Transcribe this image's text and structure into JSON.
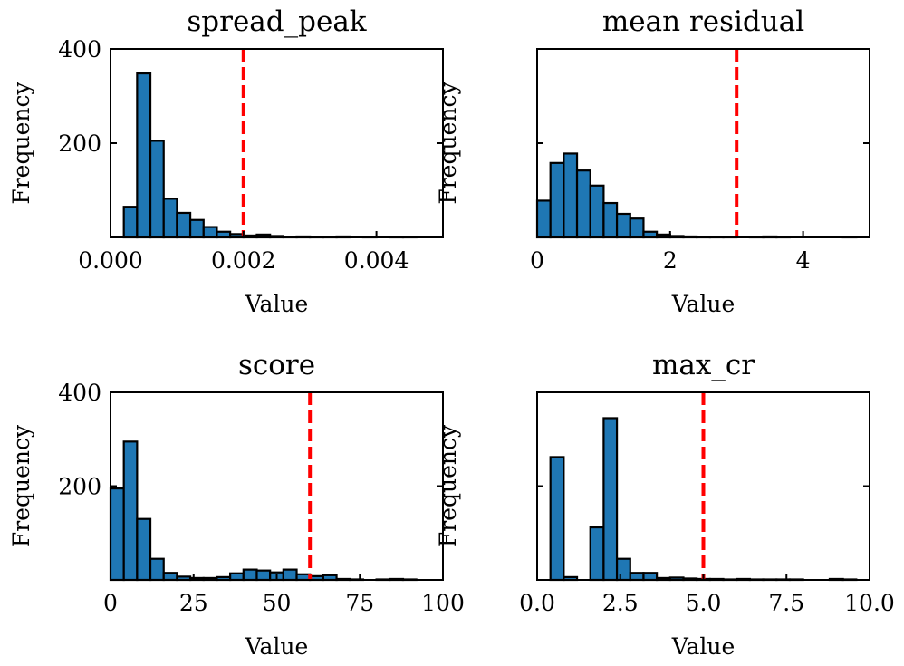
{
  "chart_data": [
    {
      "type": "bar",
      "title": "spread_peak",
      "xlabel": "Value",
      "ylabel": "Frequency",
      "xlim": [
        0,
        0.005
      ],
      "ylim": [
        0,
        400
      ],
      "xticks": [
        0.0,
        0.002,
        0.004
      ],
      "xtick_labels": [
        "0.000",
        "0.002",
        "0.004"
      ],
      "yticks": [
        200,
        400
      ],
      "ytick_labels": [
        "200",
        "400"
      ],
      "bin_edges": [
        0.0002,
        0.0004,
        0.0006,
        0.0008,
        0.001,
        0.0012,
        0.0014,
        0.0016,
        0.0018,
        0.002,
        0.0022,
        0.0024,
        0.0026,
        0.0028,
        0.003,
        0.0032,
        0.0034,
        0.0036,
        0.0038,
        0.004,
        0.0042,
        0.0044,
        0.0046,
        0.0048
      ],
      "values": [
        65,
        348,
        205,
        82,
        52,
        37,
        22,
        12,
        7,
        4,
        6,
        3,
        1,
        2,
        1,
        1,
        2,
        0,
        1,
        0,
        1,
        1,
        0
      ],
      "threshold": 0.002
    },
    {
      "type": "bar",
      "title": "mean residual",
      "xlabel": "Value",
      "ylabel": "Frequency",
      "xlim": [
        0,
        5
      ],
      "ylim": [
        0,
        400
      ],
      "xticks": [
        0,
        2,
        4
      ],
      "xtick_labels": [
        "0",
        "2",
        "4"
      ],
      "yticks": [
        200,
        400
      ],
      "ytick_labels": [
        "",
        ""
      ],
      "bin_edges": [
        0.0,
        0.2,
        0.4,
        0.6,
        0.8,
        1.0,
        1.2,
        1.4,
        1.6,
        1.8,
        2.0,
        2.2,
        2.4,
        2.6,
        2.8,
        3.0,
        3.2,
        3.4,
        3.6,
        3.8,
        4.0,
        4.2,
        4.4,
        4.6,
        4.8
      ],
      "values": [
        78,
        158,
        178,
        142,
        110,
        73,
        50,
        40,
        12,
        6,
        3,
        2,
        1,
        1,
        1,
        0,
        1,
        2,
        1,
        0,
        0,
        0,
        0,
        1
      ],
      "threshold": 3
    },
    {
      "type": "bar",
      "title": "score",
      "xlabel": "Value",
      "ylabel": "Frequency",
      "xlim": [
        0,
        100
      ],
      "ylim": [
        0,
        400
      ],
      "xticks": [
        0,
        25,
        50,
        75,
        100
      ],
      "xtick_labels": [
        "0",
        "25",
        "50",
        "75",
        "100"
      ],
      "yticks": [
        200,
        400
      ],
      "ytick_labels": [
        "200",
        "400"
      ],
      "bin_edges": [
        0,
        4,
        8,
        12,
        16,
        20,
        24,
        28,
        32,
        36,
        40,
        44,
        48,
        52,
        56,
        60,
        64,
        68,
        72,
        76,
        80,
        84,
        88,
        92
      ],
      "values": [
        195,
        295,
        130,
        45,
        15,
        7,
        4,
        4,
        6,
        14,
        22,
        20,
        16,
        22,
        12,
        8,
        10,
        2,
        1,
        0,
        1,
        2,
        1
      ],
      "threshold": 60
    },
    {
      "type": "bar",
      "title": "max_cr",
      "xlabel": "Value",
      "ylabel": "Frequency",
      "xlim": [
        0,
        10
      ],
      "ylim": [
        0,
        400
      ],
      "xticks": [
        0,
        2.5,
        5,
        7.5,
        10
      ],
      "xtick_labels": [
        "0.0",
        "2.5",
        "5.0",
        "7.5",
        "10.0"
      ],
      "yticks": [
        200,
        400
      ],
      "ytick_labels": [
        "",
        ""
      ],
      "bin_edges": [
        0.4,
        0.8,
        1.2,
        1.6,
        2.0,
        2.4,
        2.8,
        3.2,
        3.6,
        4.0,
        4.4,
        4.8,
        5.2,
        5.6,
        6.0,
        6.4,
        6.8,
        7.2,
        7.6,
        8.0,
        8.4,
        8.8,
        9.2,
        9.6
      ],
      "values": [
        262,
        6,
        0,
        112,
        345,
        45,
        15,
        15,
        4,
        5,
        3,
        2,
        2,
        1,
        2,
        1,
        1,
        1,
        1,
        0,
        0,
        2,
        1
      ],
      "threshold": 5
    }
  ],
  "colors": {
    "bar_fill": "#1f77b4",
    "threshold_line": "#ff0000"
  }
}
